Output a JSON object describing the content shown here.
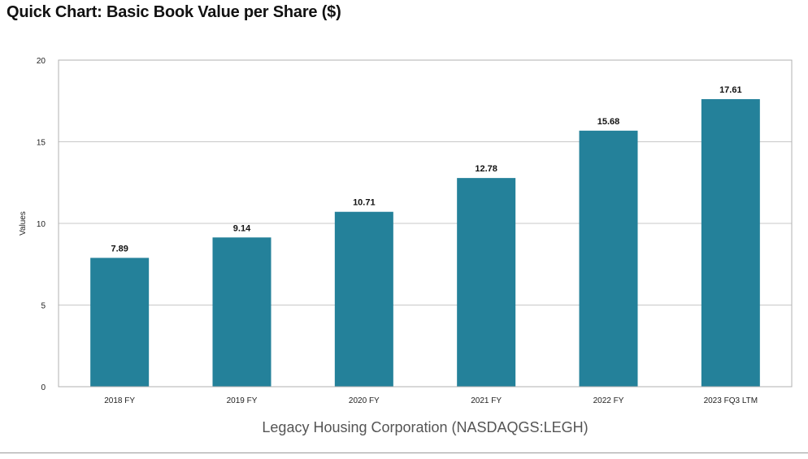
{
  "header": {
    "title": "Quick Chart: Basic Book Value per Share ($)"
  },
  "footer": {
    "caption": "Legacy Housing Corporation (NASDAQGS:LEGH)"
  },
  "colors": {
    "bar": "#24819a",
    "grid": "#c8c8c8",
    "frame": "#b0b0b0"
  },
  "chart_data": {
    "type": "bar",
    "title": "Quick Chart: Basic Book Value per Share ($)",
    "xlabel": "",
    "ylabel": "Values",
    "ylim": [
      0,
      20
    ],
    "yticks": [
      0,
      5,
      10,
      15,
      20
    ],
    "grid": true,
    "categories": [
      "2018 FY",
      "2019 FY",
      "2020 FY",
      "2021 FY",
      "2022 FY",
      "2023 FQ3 LTM"
    ],
    "values": [
      7.89,
      9.14,
      10.71,
      12.78,
      15.68,
      17.61
    ],
    "data_labels": [
      "7.89",
      "9.14",
      "10.71",
      "12.78",
      "15.68",
      "17.61"
    ]
  }
}
